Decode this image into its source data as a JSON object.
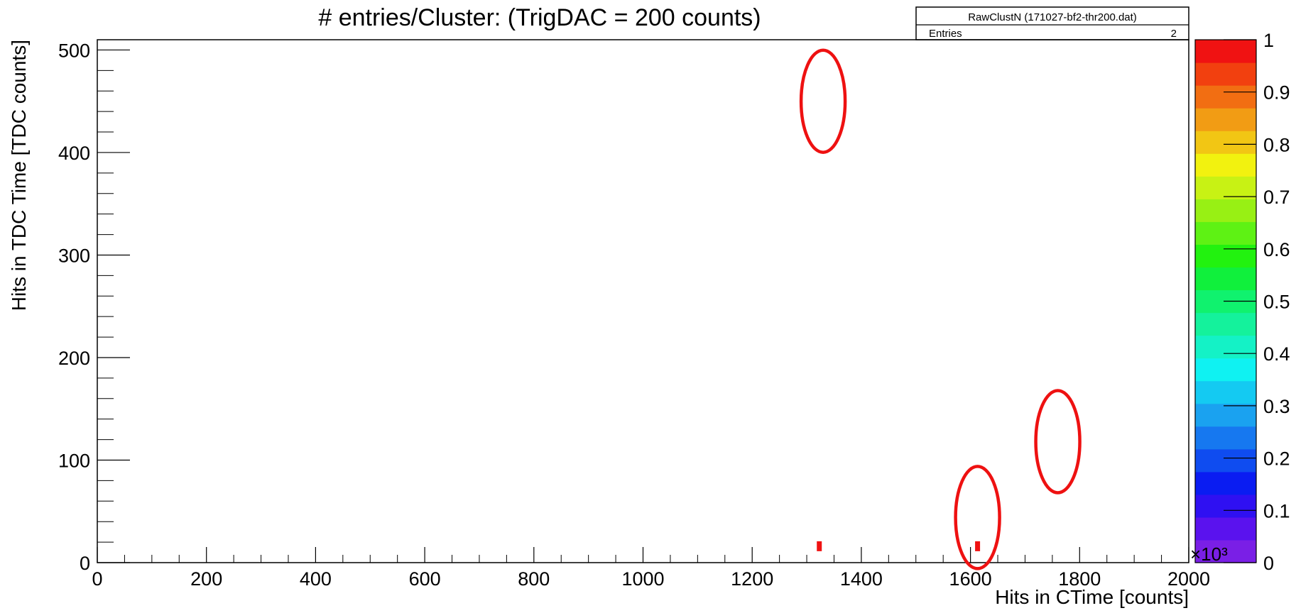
{
  "chart_data": {
    "type": "heatmap",
    "title": "# entries/Cluster: (TrigDAC = 200 counts)",
    "xlabel": "Hits in CTime [counts]",
    "ylabel": "Hits in TDC Time [TDC counts]",
    "x_multiplier_label": "×10³",
    "xlim": [
      0,
      2000
    ],
    "ylim": [
      0,
      510
    ],
    "x_ticks": [
      "0",
      "200",
      "400",
      "600",
      "800",
      "1000",
      "1200",
      "1400",
      "1600",
      "1800",
      "2000"
    ],
    "y_ticks": [
      "0",
      "100",
      "200",
      "300",
      "400",
      "500"
    ],
    "points": [
      {
        "x": 1323,
        "y": 16,
        "value": 1
      },
      {
        "x": 1613,
        "y": 16,
        "value": 1
      }
    ],
    "stats_box": {
      "title": "RawClustN (171027-bf2-thr200.dat)",
      "entries_label": "Entries",
      "entries_value": "2"
    },
    "colorbar": {
      "range": [
        0,
        1
      ],
      "tick_labels": [
        "0",
        "0.1",
        "0.2",
        "0.3",
        "0.4",
        "0.5",
        "0.6",
        "0.7",
        "0.8",
        "0.9",
        "1"
      ],
      "colors": [
        "#7a1fe6",
        "#5a12ee",
        "#2f10f2",
        "#0a1cf2",
        "#0f4cf0",
        "#1678f0",
        "#1aa2f0",
        "#14caf2",
        "#0ff2f2",
        "#14f2c6",
        "#14f29c",
        "#10f26e",
        "#10f03c",
        "#22f20f",
        "#5ef214",
        "#98f014",
        "#c8f214",
        "#f2f20f",
        "#f2c614",
        "#f29c14",
        "#f26e12",
        "#f2400f",
        "#f01212"
      ]
    },
    "annotations": [
      {
        "type": "ellipse",
        "x": 1330,
        "y": 450,
        "color": "#ee1111"
      },
      {
        "type": "ellipse",
        "x": 1613,
        "y": 44,
        "color": "#ee1111"
      },
      {
        "type": "ellipse",
        "x": 1760,
        "y": 118,
        "color": "#ee1111"
      }
    ]
  }
}
